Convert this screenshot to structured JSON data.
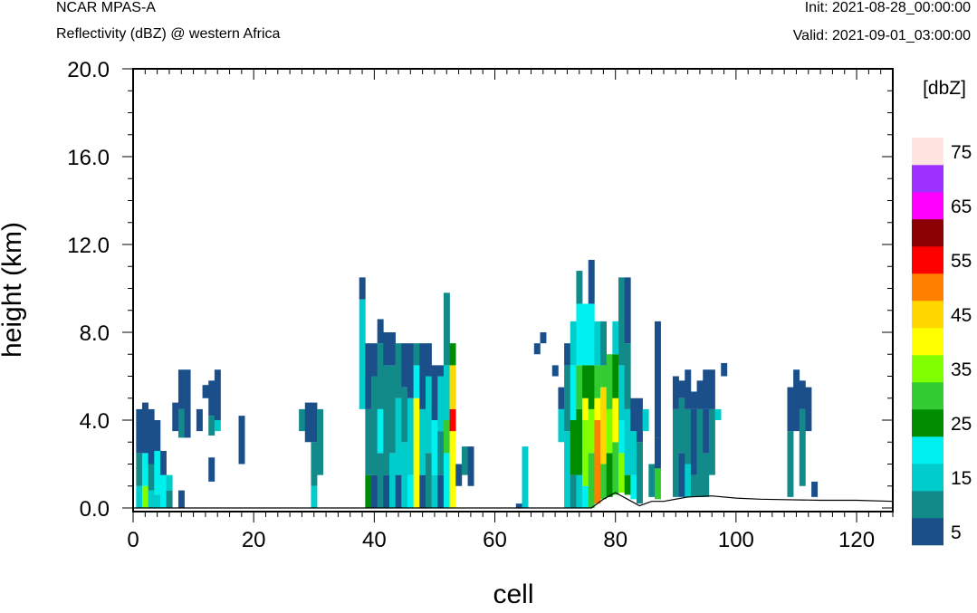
{
  "header": {
    "model": "NCAR MPAS-A",
    "field": "Reflectivity (dBZ) @ western Africa",
    "init": "Init: 2021-08-28_00:00:00",
    "valid": "Valid: 2021-09-01_03:00:00"
  },
  "chart_data": {
    "type": "heatmap",
    "xlabel": "cell",
    "ylabel": "height (km)",
    "xlim": [
      0,
      126
    ],
    "ylim": [
      0,
      20
    ],
    "x_ticks": [
      "0",
      "20",
      "40",
      "60",
      "80",
      "100",
      "120"
    ],
    "y_ticks": [
      "0.0",
      "4.0",
      "8.0",
      "12.0",
      "16.0",
      "20.0"
    ],
    "colorbar": {
      "unit": "[dbZ]",
      "labels": [
        "5",
        "15",
        "25",
        "35",
        "45",
        "55",
        "65",
        "75"
      ],
      "colors": [
        "#1a4f8a",
        "#138a8a",
        "#00cccc",
        "#00f0f0",
        "#008c00",
        "#33cc33",
        "#80ff00",
        "#ffff00",
        "#ffd700",
        "#ff8000",
        "#ff0000",
        "#8b0000",
        "#ff00ff",
        "#9b30ff",
        "#ffe4e1"
      ]
    },
    "columns": [
      {
        "cell": 1,
        "bins": [
          [
            0,
            1.0,
            2
          ],
          [
            1.0,
            2.5,
            1
          ],
          [
            2.5,
            4.5,
            0
          ]
        ]
      },
      {
        "cell": 2,
        "bins": [
          [
            0,
            1.0,
            6
          ],
          [
            1.0,
            2.5,
            3
          ],
          [
            2.5,
            4.8,
            0
          ]
        ]
      },
      {
        "cell": 3,
        "bins": [
          [
            0,
            0.8,
            2
          ],
          [
            0.8,
            2.0,
            1
          ],
          [
            2.0,
            4.5,
            0
          ]
        ]
      },
      {
        "cell": 4,
        "bins": [
          [
            0,
            0.6,
            2
          ],
          [
            0.6,
            2.6,
            3
          ],
          [
            2.6,
            4.0,
            0
          ]
        ]
      },
      {
        "cell": 5,
        "bins": [
          [
            0,
            1.5,
            3
          ],
          [
            1.5,
            2.6,
            0
          ]
        ]
      },
      {
        "cell": 6,
        "bins": [
          [
            0,
            0.8,
            1
          ],
          [
            0.8,
            1.5,
            2
          ]
        ]
      },
      {
        "cell": 7,
        "bins": [
          [
            3.5,
            4.8,
            0
          ]
        ]
      },
      {
        "cell": 8,
        "bins": [
          [
            0,
            0.8,
            0
          ],
          [
            3.2,
            4.5,
            1
          ],
          [
            4.5,
            6.3,
            0
          ]
        ]
      },
      {
        "cell": 9,
        "bins": [
          [
            3.2,
            6.3,
            0
          ]
        ]
      },
      {
        "cell": 11,
        "bins": [
          [
            3.5,
            4.5,
            0
          ]
        ]
      },
      {
        "cell": 12,
        "bins": [
          [
            5.0,
            5.6,
            0
          ]
        ]
      },
      {
        "cell": 13,
        "bins": [
          [
            1.2,
            2.3,
            0
          ],
          [
            3.3,
            4.2,
            1
          ],
          [
            4.2,
            5.8,
            0
          ]
        ]
      },
      {
        "cell": 14,
        "bins": [
          [
            3.5,
            4.0,
            2
          ],
          [
            4.0,
            6.3,
            0
          ]
        ]
      },
      {
        "cell": 18,
        "bins": [
          [
            2.0,
            4.2,
            0
          ]
        ]
      },
      {
        "cell": 28,
        "bins": [
          [
            3.5,
            4.5,
            1
          ]
        ]
      },
      {
        "cell": 29,
        "bins": [
          [
            3.0,
            4.8,
            0
          ]
        ]
      },
      {
        "cell": 30,
        "bins": [
          [
            0,
            1.0,
            2
          ],
          [
            1.0,
            3.0,
            1
          ],
          [
            3.0,
            4.8,
            0
          ]
        ]
      },
      {
        "cell": 31,
        "bins": [
          [
            1.5,
            4.5,
            1
          ]
        ]
      },
      {
        "cell": 38,
        "bins": [
          [
            4.5,
            9.5,
            2
          ],
          [
            9.5,
            10.5,
            0
          ]
        ]
      },
      {
        "cell": 39,
        "bins": [
          [
            0,
            1.5,
            4
          ],
          [
            1.5,
            4.5,
            1
          ],
          [
            4.5,
            7.5,
            0
          ]
        ]
      },
      {
        "cell": 40,
        "bins": [
          [
            0,
            1.5,
            0
          ],
          [
            1.5,
            6.0,
            1
          ],
          [
            6.0,
            7.5,
            0
          ]
        ]
      },
      {
        "cell": 41,
        "bins": [
          [
            0,
            2.5,
            1
          ],
          [
            2.5,
            4.5,
            3
          ],
          [
            4.5,
            7.5,
            1
          ],
          [
            7.5,
            8.6,
            0
          ]
        ]
      },
      {
        "cell": 42,
        "bins": [
          [
            0,
            1.5,
            0
          ],
          [
            1.5,
            6.5,
            1
          ],
          [
            6.5,
            8.0,
            0
          ]
        ]
      },
      {
        "cell": 43,
        "bins": [
          [
            0,
            2.5,
            2
          ],
          [
            2.5,
            6.5,
            1
          ],
          [
            6.5,
            8.0,
            0
          ]
        ]
      },
      {
        "cell": 44,
        "bins": [
          [
            0,
            1.5,
            0
          ],
          [
            1.5,
            5.0,
            2
          ],
          [
            5.0,
            7.5,
            1
          ]
        ]
      },
      {
        "cell": 45,
        "bins": [
          [
            0,
            3.0,
            2
          ],
          [
            3.0,
            5.5,
            1
          ],
          [
            5.5,
            7.5,
            0
          ]
        ]
      },
      {
        "cell": 46,
        "bins": [
          [
            0,
            1.5,
            3
          ],
          [
            1.5,
            5.0,
            2
          ],
          [
            5.0,
            7.5,
            0
          ]
        ]
      },
      {
        "cell": 47,
        "bins": [
          [
            0,
            5.0,
            7
          ],
          [
            5.0,
            6.5,
            3
          ],
          [
            6.5,
            7.5,
            1
          ]
        ]
      },
      {
        "cell": 48,
        "bins": [
          [
            0,
            1.5,
            0
          ],
          [
            1.5,
            4.5,
            2
          ],
          [
            4.5,
            7.5,
            0
          ]
        ]
      },
      {
        "cell": 49,
        "bins": [
          [
            0,
            2.5,
            1
          ],
          [
            2.5,
            6.0,
            2
          ],
          [
            6.0,
            7.5,
            0
          ]
        ]
      },
      {
        "cell": 50,
        "bins": [
          [
            0,
            1.5,
            2
          ],
          [
            1.5,
            4.0,
            3
          ],
          [
            4.0,
            6.5,
            0
          ]
        ]
      },
      {
        "cell": 51,
        "bins": [
          [
            0,
            1.5,
            0
          ],
          [
            1.5,
            3.5,
            1
          ],
          [
            3.5,
            6.0,
            2
          ],
          [
            6.0,
            6.5,
            0
          ]
        ]
      },
      {
        "cell": 52,
        "bins": [
          [
            0,
            2.5,
            3
          ],
          [
            2.5,
            4.0,
            5
          ],
          [
            4.0,
            6.5,
            2
          ],
          [
            6.5,
            9.8,
            1
          ]
        ]
      },
      {
        "cell": 53,
        "bins": [
          [
            0,
            3.5,
            7
          ],
          [
            3.5,
            4.5,
            10
          ],
          [
            4.5,
            6.5,
            8
          ],
          [
            6.5,
            7.5,
            4
          ]
        ]
      },
      {
        "cell": 54,
        "bins": [
          [
            1.0,
            2.0,
            0
          ]
        ]
      },
      {
        "cell": 55,
        "bins": [
          [
            1.5,
            2.8,
            1
          ]
        ]
      },
      {
        "cell": 56,
        "bins": [
          [
            1.0,
            2.8,
            0
          ]
        ]
      },
      {
        "cell": 64,
        "bins": [
          [
            0,
            0.2,
            0
          ]
        ]
      },
      {
        "cell": 65,
        "bins": [
          [
            0,
            2.8,
            2
          ]
        ]
      },
      {
        "cell": 67,
        "bins": [
          [
            7.0,
            7.5,
            0
          ]
        ]
      },
      {
        "cell": 68,
        "bins": [
          [
            7.5,
            8.0,
            0
          ]
        ]
      },
      {
        "cell": 70,
        "bins": [
          [
            6.0,
            6.5,
            0
          ]
        ]
      },
      {
        "cell": 71,
        "bins": [
          [
            3.0,
            4.5,
            2
          ],
          [
            4.5,
            5.5,
            0
          ]
        ]
      },
      {
        "cell": 72,
        "bins": [
          [
            0,
            3.5,
            2
          ],
          [
            3.5,
            6.5,
            1
          ],
          [
            6.5,
            7.5,
            0
          ]
        ]
      },
      {
        "cell": 73,
        "bins": [
          [
            0,
            1.5,
            1
          ],
          [
            1.5,
            4.0,
            4
          ],
          [
            4.0,
            6.5,
            3
          ],
          [
            6.5,
            8.5,
            2
          ]
        ]
      },
      {
        "cell": 74,
        "bins": [
          [
            0,
            1.5,
            2
          ],
          [
            1.5,
            4.5,
            4
          ],
          [
            4.5,
            6.5,
            5
          ],
          [
            6.5,
            9.3,
            3
          ],
          [
            9.3,
            10.8,
            1
          ]
        ]
      },
      {
        "cell": 75,
        "bins": [
          [
            0,
            1.0,
            3
          ],
          [
            1.0,
            4.0,
            6
          ],
          [
            4.0,
            5.0,
            7
          ],
          [
            5.0,
            6.5,
            4
          ],
          [
            6.5,
            9.3,
            3
          ]
        ]
      },
      {
        "cell": 76,
        "bins": [
          [
            0,
            2.5,
            5
          ],
          [
            2.5,
            4.5,
            6
          ],
          [
            4.5,
            6.5,
            4
          ],
          [
            6.5,
            9.3,
            3
          ],
          [
            9.3,
            11.3,
            0
          ]
        ]
      },
      {
        "cell": 77,
        "bins": [
          [
            0.2,
            4.0,
            9
          ],
          [
            4.0,
            5.0,
            7
          ],
          [
            5.0,
            6.5,
            5
          ],
          [
            6.5,
            8.5,
            2
          ]
        ]
      },
      {
        "cell": 78,
        "bins": [
          [
            0.4,
            2.0,
            5
          ],
          [
            2.0,
            5.5,
            8
          ],
          [
            5.5,
            6.5,
            5
          ],
          [
            6.5,
            8.5,
            1
          ]
        ]
      },
      {
        "cell": 79,
        "bins": [
          [
            0.5,
            2.5,
            4
          ],
          [
            2.5,
            4.5,
            6
          ],
          [
            4.5,
            7.0,
            5
          ]
        ]
      },
      {
        "cell": 80,
        "bins": [
          [
            0.6,
            3.0,
            5
          ],
          [
            3.0,
            5.0,
            7
          ],
          [
            5.0,
            7.0,
            4
          ],
          [
            7.0,
            8.5,
            2
          ]
        ]
      },
      {
        "cell": 81,
        "bins": [
          [
            0.7,
            2.5,
            6
          ],
          [
            2.5,
            4.0,
            3
          ],
          [
            4.0,
            6.5,
            2
          ],
          [
            6.5,
            10.5,
            1
          ]
        ]
      },
      {
        "cell": 82,
        "bins": [
          [
            0.6,
            1.5,
            4
          ],
          [
            1.5,
            4.5,
            2
          ],
          [
            4.5,
            7.5,
            1
          ],
          [
            7.5,
            10.5,
            0
          ]
        ]
      },
      {
        "cell": 83,
        "bins": [
          [
            0.4,
            1.5,
            3
          ],
          [
            1.5,
            3.5,
            2
          ],
          [
            3.5,
            5.0,
            0
          ]
        ]
      },
      {
        "cell": 84,
        "bins": [
          [
            0.2,
            3.0,
            1
          ],
          [
            3.0,
            5.0,
            0
          ]
        ]
      },
      {
        "cell": 85,
        "bins": [
          [
            3.5,
            4.5,
            2
          ]
        ]
      },
      {
        "cell": 86,
        "bins": [
          [
            0.5,
            2.0,
            1
          ]
        ]
      },
      {
        "cell": 87,
        "bins": [
          [
            0.4,
            1.8,
            5
          ],
          [
            1.8,
            3.2,
            0
          ],
          [
            3.2,
            8.5,
            0
          ]
        ]
      },
      {
        "cell": 90,
        "bins": [
          [
            0.5,
            4.5,
            1
          ],
          [
            4.5,
            6.0,
            0
          ]
        ]
      },
      {
        "cell": 91,
        "bins": [
          [
            0.5,
            2.5,
            0
          ],
          [
            2.5,
            5.0,
            1
          ],
          [
            5.0,
            5.8,
            0
          ]
        ]
      },
      {
        "cell": 92,
        "bins": [
          [
            0.5,
            2.0,
            2
          ],
          [
            2.0,
            4.5,
            1
          ],
          [
            4.5,
            6.3,
            0
          ]
        ]
      },
      {
        "cell": 93,
        "bins": [
          [
            0.5,
            1.5,
            1
          ],
          [
            1.5,
            4.5,
            0
          ],
          [
            4.5,
            5.3,
            0
          ]
        ]
      },
      {
        "cell": 94,
        "bins": [
          [
            0.5,
            4.5,
            1
          ],
          [
            4.5,
            5.8,
            0
          ]
        ]
      },
      {
        "cell": 95,
        "bins": [
          [
            0.5,
            2.5,
            1
          ],
          [
            2.5,
            4.5,
            0
          ],
          [
            4.5,
            6.3,
            0
          ]
        ]
      },
      {
        "cell": 96,
        "bins": [
          [
            1.5,
            4.5,
            1
          ],
          [
            4.5,
            6.3,
            0
          ]
        ]
      },
      {
        "cell": 97,
        "bins": [
          [
            4.0,
            4.5,
            2
          ]
        ]
      },
      {
        "cell": 98,
        "bins": [
          [
            6.0,
            6.6,
            0
          ]
        ]
      },
      {
        "cell": 109,
        "bins": [
          [
            0.5,
            3.5,
            1
          ],
          [
            3.5,
            5.5,
            0
          ]
        ]
      },
      {
        "cell": 110,
        "bins": [
          [
            3.5,
            6.3,
            0
          ]
        ]
      },
      {
        "cell": 111,
        "bins": [
          [
            1.0,
            4.5,
            1
          ],
          [
            4.5,
            5.8,
            0
          ]
        ]
      },
      {
        "cell": 112,
        "bins": [
          [
            3.5,
            5.5,
            0
          ]
        ]
      },
      {
        "cell": 113,
        "bins": [
          [
            0.5,
            1.2,
            0
          ]
        ]
      }
    ],
    "terrain": [
      [
        0,
        0
      ],
      [
        76,
        0
      ],
      [
        78,
        0.4
      ],
      [
        80,
        0.7
      ],
      [
        82,
        0.4
      ],
      [
        84,
        0.1
      ],
      [
        86,
        0.3
      ],
      [
        88,
        0.3
      ],
      [
        92,
        0.5
      ],
      [
        96,
        0.55
      ],
      [
        100,
        0.45
      ],
      [
        104,
        0.4
      ],
      [
        108,
        0.38
      ],
      [
        114,
        0.35
      ],
      [
        120,
        0.35
      ],
      [
        126,
        0.3
      ]
    ]
  }
}
